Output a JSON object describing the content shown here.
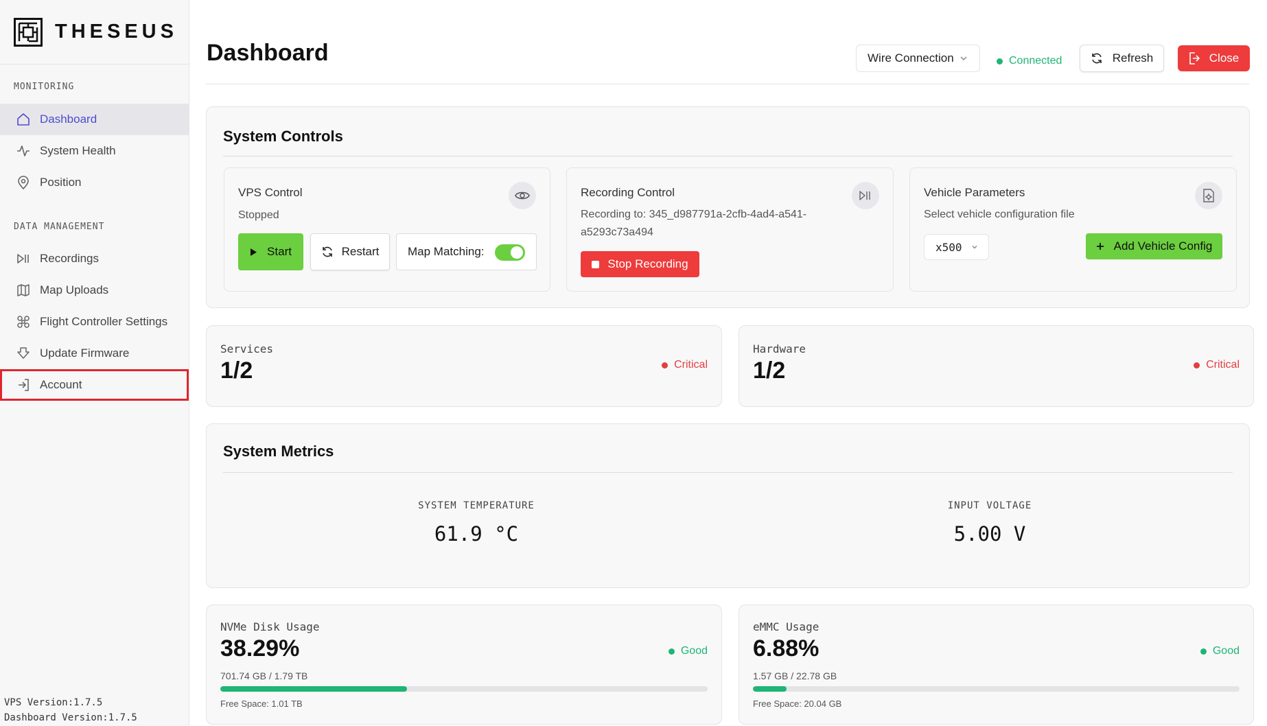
{
  "brand": {
    "name": "THESEUS"
  },
  "sidebar": {
    "sections": [
      {
        "label": "MONITORING",
        "items": [
          {
            "label": "Dashboard",
            "icon": "home-icon",
            "active": true
          },
          {
            "label": "System Health",
            "icon": "pulse-icon"
          },
          {
            "label": "Position",
            "icon": "map-pin-icon"
          }
        ]
      },
      {
        "label": "DATA MANAGEMENT",
        "items": [
          {
            "label": "Recordings",
            "icon": "play-pause-icon"
          },
          {
            "label": "Map Uploads",
            "icon": "map-icon"
          },
          {
            "label": "Flight Controller Settings",
            "icon": "drone-icon"
          },
          {
            "label": "Update Firmware",
            "icon": "download-icon"
          },
          {
            "label": "Account",
            "icon": "login-icon",
            "highlighted": true
          }
        ]
      }
    ],
    "versions": {
      "vps": "VPS Version:1.7.5",
      "dashboard": "Dashboard Version:1.7.5"
    }
  },
  "header": {
    "title": "Dashboard",
    "connection_type": "Wire Connection",
    "connection_status": "Connected",
    "refresh_label": "Refresh",
    "close_label": "Close"
  },
  "system_controls": {
    "title": "System Controls",
    "vps": {
      "title": "VPS Control",
      "status": "Stopped",
      "start_label": "Start",
      "restart_label": "Restart",
      "map_matching_label": "Map Matching:",
      "map_matching_on": true
    },
    "recording": {
      "title": "Recording Control",
      "line1": "Recording to: 345_d987791a-2cfb-4ad4-a541-",
      "line2": "a5293c73a494",
      "stop_label": "Stop Recording"
    },
    "vehicle": {
      "title": "Vehicle Parameters",
      "subtitle": "Select vehicle configuration file",
      "selected": "x500",
      "add_label": "Add Vehicle Config"
    }
  },
  "services": {
    "label": "Services",
    "value": "1/2",
    "status": "Critical"
  },
  "hardware": {
    "label": "Hardware",
    "value": "1/2",
    "status": "Critical"
  },
  "metrics": {
    "title": "System Metrics",
    "temperature": {
      "label": "SYSTEM TEMPERATURE",
      "value": "61.9 °C"
    },
    "voltage": {
      "label": "INPUT VOLTAGE",
      "value": "5.00 V"
    }
  },
  "nvme": {
    "label": "NVMe Disk Usage",
    "value": "38.29%",
    "usage": "701.74 GB / 1.79 TB",
    "free": "Free Space: 1.01 TB",
    "status": "Good",
    "percent": 38.29
  },
  "emmc": {
    "label": "eMMC Usage",
    "value": "6.88%",
    "usage": "1.57 GB / 22.78 GB",
    "free": "Free Space: 20.04 GB",
    "status": "Good",
    "percent": 6.88
  },
  "colors": {
    "accent": "#4c4ccf",
    "green": "#6bcf3f",
    "red": "#ee3b3b",
    "good": "#1fb574",
    "critical": "#e53e3e"
  }
}
